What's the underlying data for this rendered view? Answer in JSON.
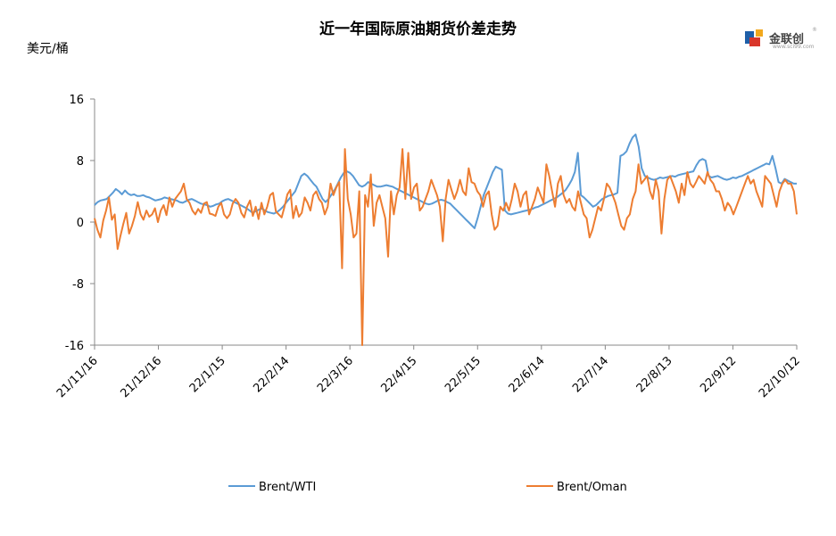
{
  "chart_data": {
    "type": "line",
    "title": "近一年国际原油期货价差走势",
    "ylabel": "美元/桶",
    "xlabel": "",
    "ylim": [
      -16,
      16
    ],
    "yticks": [
      "16",
      "8",
      "0",
      "-8",
      "-16"
    ],
    "xticks": [
      "21/11/16",
      "21/12/16",
      "22/1/15",
      "22/2/14",
      "22/3/16",
      "22/4/15",
      "22/5/15",
      "22/6/14",
      "22/7/14",
      "22/8/13",
      "22/9/12",
      "22/10/12"
    ],
    "legend_position": "bottom",
    "grid": false,
    "series": [
      {
        "name": "Brent/WTI",
        "color": "#5b9bd5",
        "values": [
          2.2,
          2.6,
          2.8,
          2.9,
          3.0,
          3.4,
          3.8,
          4.3,
          4.0,
          3.6,
          4.1,
          3.7,
          3.5,
          3.6,
          3.4,
          3.4,
          3.5,
          3.3,
          3.2,
          3.0,
          2.8,
          2.9,
          3.0,
          3.2,
          3.1,
          3.0,
          2.9,
          2.8,
          2.6,
          2.5,
          2.7,
          2.9,
          3.0,
          2.8,
          2.6,
          2.4,
          2.3,
          2.2,
          2.0,
          2.1,
          2.3,
          2.4,
          2.7,
          2.9,
          3.0,
          2.8,
          2.6,
          2.4,
          2.2,
          2.0,
          1.8,
          1.5,
          1.2,
          1.4,
          1.6,
          1.8,
          1.5,
          1.3,
          1.2,
          1.1,
          1.3,
          1.6,
          2.0,
          2.5,
          3.0,
          3.5,
          4.0,
          5.0,
          6.0,
          6.3,
          6.0,
          5.5,
          5.0,
          4.6,
          3.8,
          3.0,
          2.6,
          3.0,
          3.6,
          4.2,
          5.0,
          5.8,
          6.4,
          6.6,
          6.4,
          6.0,
          5.4,
          4.8,
          4.6,
          4.8,
          5.2,
          5.0,
          4.8,
          4.6,
          4.6,
          4.7,
          4.8,
          4.7,
          4.6,
          4.4,
          4.2,
          4.0,
          3.8,
          3.6,
          3.4,
          3.2,
          3.0,
          2.8,
          2.6,
          2.4,
          2.3,
          2.4,
          2.6,
          2.8,
          2.9,
          2.8,
          2.6,
          2.4,
          2.0,
          1.6,
          1.2,
          0.8,
          0.4,
          0.0,
          -0.4,
          -0.8,
          0.5,
          2.0,
          3.5,
          4.5,
          5.5,
          6.5,
          7.2,
          7.0,
          6.8,
          1.5,
          1.1,
          1.0,
          1.1,
          1.2,
          1.3,
          1.4,
          1.5,
          1.6,
          1.7,
          1.9,
          2.0,
          2.2,
          2.4,
          2.6,
          2.8,
          3.0,
          3.2,
          3.5,
          3.8,
          4.2,
          4.8,
          5.5,
          6.5,
          9.0,
          3.5,
          3.2,
          2.8,
          2.4,
          2.0,
          2.2,
          2.6,
          3.0,
          3.2,
          3.4,
          3.5,
          3.6,
          3.8,
          8.6,
          8.8,
          9.2,
          10.2,
          11.0,
          11.4,
          9.8,
          7.0,
          6.0,
          5.8,
          5.6,
          5.5,
          5.6,
          5.8,
          5.7,
          5.8,
          5.9,
          6.0,
          5.9,
          6.1,
          6.2,
          6.3,
          6.4,
          6.5,
          6.6,
          7.4,
          8.0,
          8.2,
          8.0,
          6.0,
          5.8,
          5.9,
          6.0,
          5.8,
          5.6,
          5.5,
          5.6,
          5.8,
          5.7,
          5.9,
          6.0,
          6.2,
          6.4,
          6.6,
          6.8,
          7.0,
          7.2,
          7.4,
          7.6,
          7.5,
          8.6,
          7.0,
          5.2,
          5.0,
          5.6,
          5.4,
          5.2,
          5.0,
          5.0
        ]
      },
      {
        "name": "Brent/Oman",
        "color": "#ed7d31",
        "values": [
          0.5,
          -1.0,
          -2.0,
          0.2,
          1.5,
          3.2,
          0.3,
          1.0,
          -3.5,
          -1.8,
          -0.2,
          1.2,
          -1.5,
          -0.5,
          0.8,
          2.6,
          1.0,
          0.3,
          1.5,
          0.7,
          1.0,
          1.8,
          0.0,
          1.5,
          2.2,
          0.9,
          3.2,
          2.0,
          3.0,
          3.5,
          4.0,
          5.0,
          3.0,
          2.5,
          1.5,
          1.0,
          1.7,
          1.2,
          2.4,
          2.6,
          1.1,
          1.0,
          0.8,
          2.0,
          2.5,
          1.0,
          0.5,
          1.0,
          2.4,
          3.0,
          2.5,
          1.2,
          0.6,
          2.0,
          2.8,
          0.8,
          2.0,
          0.4,
          2.5,
          1.0,
          2.0,
          3.5,
          3.8,
          1.4,
          1.0,
          0.6,
          2.0,
          3.6,
          4.2,
          0.5,
          2.1,
          0.7,
          1.2,
          3.2,
          2.5,
          1.5,
          3.5,
          4.0,
          3.0,
          2.5,
          1.0,
          2.0,
          5.0,
          3.5,
          4.5,
          5.2,
          -6.0,
          9.5,
          3.0,
          1.0,
          -2.0,
          -1.5,
          4.0,
          -16.0,
          3.5,
          2.0,
          6.2,
          -0.5,
          2.5,
          3.5,
          2.0,
          0.5,
          -4.5,
          4.0,
          1.0,
          3.5,
          4.5,
          9.5,
          3.0,
          9.0,
          3.0,
          4.5,
          5.0,
          1.5,
          2.0,
          3.0,
          4.0,
          5.5,
          4.5,
          3.5,
          2.0,
          -2.5,
          3.0,
          5.5,
          4.2,
          3.0,
          4.0,
          5.5,
          4.0,
          3.5,
          7.0,
          5.2,
          5.0,
          4.0,
          3.5,
          2.0,
          3.5,
          4.0,
          1.0,
          -1.0,
          -0.5,
          2.0,
          1.5,
          2.5,
          1.5,
          3.0,
          5.0,
          4.0,
          2.0,
          3.5,
          4.0,
          1.0,
          2.0,
          3.0,
          4.5,
          3.5,
          2.5,
          7.5,
          6.0,
          4.0,
          2.0,
          5.0,
          6.0,
          3.5,
          2.5,
          3.0,
          2.0,
          1.5,
          4.0,
          2.5,
          1.0,
          0.5,
          -2.0,
          -1.0,
          0.5,
          2.0,
          1.5,
          3.0,
          5.0,
          4.5,
          3.5,
          2.5,
          1.0,
          -0.5,
          -1.0,
          0.5,
          1.0,
          3.0,
          4.0,
          7.5,
          5.0,
          5.5,
          6.0,
          4.0,
          3.0,
          5.5,
          4.0,
          -1.5,
          3.0,
          5.5,
          6.0,
          5.0,
          4.0,
          2.5,
          5.0,
          3.5,
          6.5,
          5.0,
          4.5,
          5.2,
          6.0,
          5.5,
          5.0,
          6.5,
          5.5,
          5.0,
          4.0,
          4.0,
          3.0,
          1.5,
          2.5,
          2.0,
          1.0,
          2.0,
          3.0,
          4.0,
          5.0,
          6.0,
          5.0,
          5.5,
          4.0,
          3.0,
          2.0,
          6.0,
          5.5,
          5.0,
          3.5,
          2.0,
          4.0,
          5.0,
          5.5,
          5.0,
          5.0,
          4.0,
          1.0
        ]
      }
    ]
  },
  "logo": {
    "name": "金联创",
    "sub": "www.sci99.com",
    "reg": "®"
  }
}
